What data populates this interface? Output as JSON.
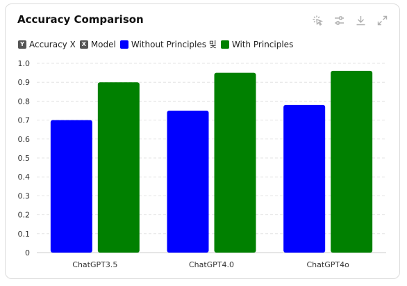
{
  "card": {
    "title": "Accuracy Comparison"
  },
  "toolbar": {
    "icons": [
      "select-icon",
      "settings-sliders-icon",
      "download-icon",
      "expand-icon"
    ]
  },
  "legend": [
    {
      "glyph": "Y",
      "label": "Accuracy X",
      "color": "#555555"
    },
    {
      "glyph": "X",
      "label": "Model",
      "color": "#555555"
    },
    {
      "glyph": "",
      "label": "Without Principles 및",
      "color": "#0000ff"
    },
    {
      "glyph": "",
      "label": "With Principles",
      "color": "#008000"
    }
  ],
  "chart_data": {
    "type": "bar",
    "categories": [
      "ChatGPT3.5",
      "ChatGPT4.0",
      "ChatGPT4o"
    ],
    "series": [
      {
        "name": "Without Principles",
        "values": [
          0.7,
          0.75,
          0.78
        ],
        "color": "#0000ff"
      },
      {
        "name": "With Principles",
        "values": [
          0.9,
          0.95,
          0.96
        ],
        "color": "#008000"
      }
    ],
    "ylim": [
      0,
      1.0
    ],
    "yticks": [
      "0",
      "0.1",
      "0.2",
      "0.3",
      "0.4",
      "0.5",
      "0.6",
      "0.7",
      "0.8",
      "0.9",
      "1.0"
    ],
    "grid": true,
    "legend_position": "top-left"
  }
}
